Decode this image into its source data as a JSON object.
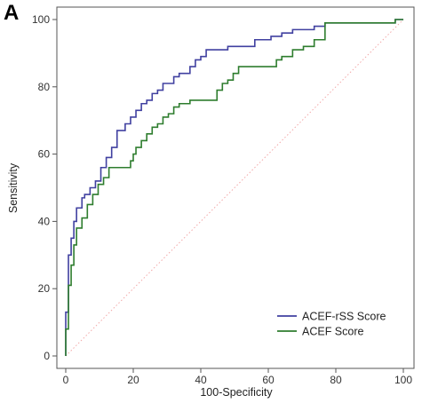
{
  "panel_label": "A",
  "chart_data": {
    "type": "line",
    "title": "",
    "xlabel": "100-Specificity",
    "ylabel": "Sensitivity",
    "xlim": [
      0,
      100
    ],
    "ylim": [
      0,
      100
    ],
    "xticks": [
      0,
      20,
      40,
      60,
      80,
      100
    ],
    "yticks": [
      0,
      20,
      40,
      60,
      80,
      100
    ],
    "xtick_labels": [
      "0",
      "20",
      "40",
      "60",
      "80",
      "100"
    ],
    "ytick_labels": [
      "0",
      "20",
      "40",
      "60",
      "80",
      "100"
    ],
    "grid": false,
    "legend_position": "bottom-right",
    "reference_line": {
      "x": [
        0,
        100
      ],
      "y": [
        0,
        100
      ],
      "color": "#f2a8a8",
      "style": "dotted"
    },
    "series": [
      {
        "name": "ACEF-rSS Score",
        "color": "#4040a0",
        "x": [
          0,
          0,
          0.8,
          0.8,
          1.6,
          1.6,
          2.4,
          2.4,
          3.2,
          3.2,
          4.8,
          4.8,
          5.6,
          5.6,
          7.2,
          7.2,
          8.8,
          8.8,
          10.4,
          10.4,
          12,
          12,
          13.6,
          13.6,
          15.2,
          15.2,
          17.6,
          17.6,
          19.2,
          19.2,
          20.8,
          20.8,
          22.4,
          22.4,
          24,
          24,
          25.6,
          25.6,
          27.2,
          27.2,
          28.8,
          28.8,
          32,
          32,
          33.6,
          33.6,
          36.8,
          36.8,
          38.4,
          38.4,
          40,
          40,
          41.6,
          41.6,
          48,
          48,
          56,
          56,
          60.8,
          60.8,
          64,
          64,
          67.2,
          67.2,
          73.6,
          73.6,
          76.8,
          76.8,
          97.6,
          97.6,
          100
        ],
        "y": [
          0,
          13,
          13,
          30,
          30,
          35,
          35,
          40,
          40,
          44,
          44,
          47,
          47,
          48,
          48,
          50,
          50,
          52,
          52,
          56,
          56,
          59,
          59,
          62,
          62,
          67,
          67,
          69,
          69,
          71,
          71,
          73,
          73,
          75,
          75,
          76,
          76,
          78,
          78,
          79,
          79,
          81,
          81,
          83,
          83,
          84,
          84,
          86,
          86,
          88,
          88,
          89,
          89,
          91,
          91,
          92,
          92,
          94,
          94,
          95,
          95,
          96,
          96,
          97,
          97,
          98,
          98,
          99,
          99,
          100,
          100
        ]
      },
      {
        "name": "ACEF Score",
        "color": "#2e7d2e",
        "x": [
          0,
          0,
          0.8,
          0.8,
          1.6,
          1.6,
          2.4,
          2.4,
          3.2,
          3.2,
          4.8,
          4.8,
          6.4,
          6.4,
          8,
          8,
          9.6,
          9.6,
          11.2,
          11.2,
          12.8,
          12.8,
          19.2,
          19.2,
          20,
          20,
          20.8,
          20.8,
          22.4,
          22.4,
          24,
          24,
          25.6,
          25.6,
          27.2,
          27.2,
          28.8,
          28.8,
          30.4,
          30.4,
          32,
          32,
          33.6,
          33.6,
          36.8,
          36.8,
          44.8,
          44.8,
          46.4,
          46.4,
          48,
          48,
          49.6,
          49.6,
          51.2,
          51.2,
          62.4,
          62.4,
          64,
          64,
          67.2,
          67.2,
          70.4,
          70.4,
          73.6,
          73.6,
          76.8,
          76.8,
          97.6,
          97.6,
          100
        ],
        "y": [
          0,
          8,
          8,
          21,
          21,
          27,
          27,
          33,
          33,
          38,
          38,
          41,
          41,
          45,
          45,
          48,
          48,
          51,
          51,
          53,
          53,
          56,
          56,
          58,
          58,
          60,
          60,
          62,
          62,
          64,
          64,
          66,
          66,
          68,
          68,
          69,
          69,
          71,
          71,
          72,
          72,
          74,
          74,
          75,
          75,
          76,
          76,
          79,
          79,
          81,
          81,
          82,
          82,
          84,
          84,
          86,
          86,
          88,
          88,
          89,
          89,
          91,
          91,
          92,
          92,
          94,
          94,
          99,
          99,
          100,
          100
        ]
      }
    ]
  }
}
